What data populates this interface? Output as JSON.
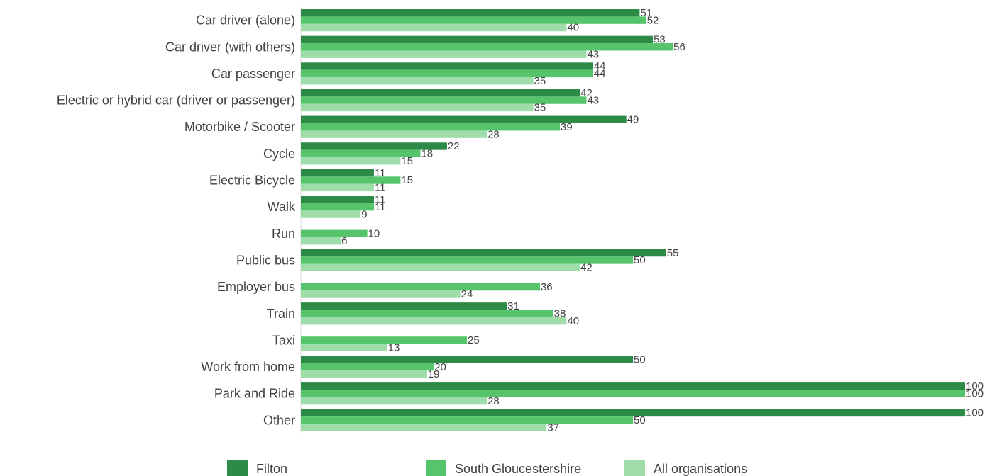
{
  "chart_data": {
    "type": "bar",
    "orientation": "horizontal",
    "title": "",
    "xlabel": "",
    "ylabel": "",
    "xlim": [
      0,
      100
    ],
    "grid": false,
    "legend_position": "bottom",
    "categories": [
      "Car driver (alone)",
      "Car driver (with others)",
      "Car passenger",
      "Electric or hybrid car (driver or passenger)",
      "Motorbike / Scooter",
      "Cycle",
      "Electric Bicycle",
      "Walk",
      "Run",
      "Public bus",
      "Employer bus",
      "Train",
      "Taxi",
      "Work from home",
      "Park and Ride",
      "Other"
    ],
    "series": [
      {
        "name": "Filton",
        "color": "#2e8b47",
        "values": [
          51,
          53,
          44,
          42,
          49,
          22,
          11,
          11,
          null,
          55,
          null,
          31,
          null,
          50,
          100,
          100
        ]
      },
      {
        "name": "South Gloucestershire",
        "color": "#55c46b",
        "values": [
          52,
          56,
          44,
          43,
          39,
          18,
          15,
          11,
          10,
          50,
          36,
          38,
          25,
          20,
          100,
          50
        ]
      },
      {
        "name": "All organisations",
        "color": "#9edcaa",
        "values": [
          40,
          43,
          35,
          35,
          28,
          15,
          11,
          9,
          6,
          42,
          24,
          40,
          13,
          19,
          28,
          37
        ]
      }
    ]
  }
}
